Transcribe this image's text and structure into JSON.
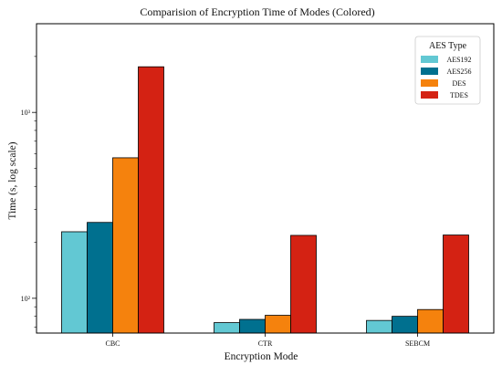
{
  "chart_data": {
    "type": "bar",
    "title": "Comparision of  Encryption  Time of Modes (Colored)",
    "xlabel": "Encryption Mode",
    "ylabel": "Time (s, log scale)",
    "y_scale": "log",
    "ylim": [
      65,
      3000
    ],
    "y_ticks": [
      {
        "value": 100,
        "label": "10²"
      },
      {
        "value": 1000,
        "label": "10³"
      }
    ],
    "grid": false,
    "legend": {
      "title": "AES Type",
      "position": "top-right"
    },
    "categories": [
      "CBC",
      "CTR",
      "SEBCM"
    ],
    "series": [
      {
        "name": "AES192",
        "color": "#62c8d3",
        "values": [
          228,
          74,
          76
        ]
      },
      {
        "name": "AES256",
        "color": "#00708f",
        "values": [
          256,
          77,
          80
        ]
      },
      {
        "name": "DES",
        "color": "#f5820d",
        "values": [
          570,
          81,
          87
        ]
      },
      {
        "name": "TDES",
        "color": "#d42213",
        "values": [
          1760,
          218,
          219
        ]
      }
    ]
  }
}
